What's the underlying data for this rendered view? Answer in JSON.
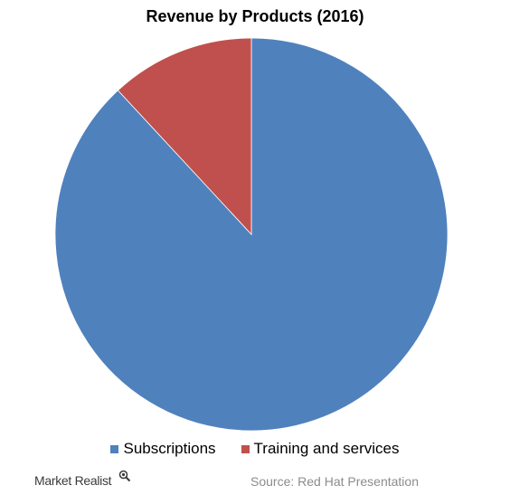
{
  "chart_data": {
    "type": "pie",
    "title": "Revenue by Products (2016)",
    "slices": [
      {
        "name": "Subscriptions",
        "value": 88.1,
        "color": "#4F81BD"
      },
      {
        "name": "Training and services",
        "value": 11.9,
        "color": "#C0504D"
      }
    ],
    "legend_position": "bottom",
    "start_angle": "top, clockwise"
  },
  "footer": {
    "brand": "Market Realist",
    "brand_icon": "magnifier-icon",
    "source": "Source:  Red Hat Presentation"
  }
}
